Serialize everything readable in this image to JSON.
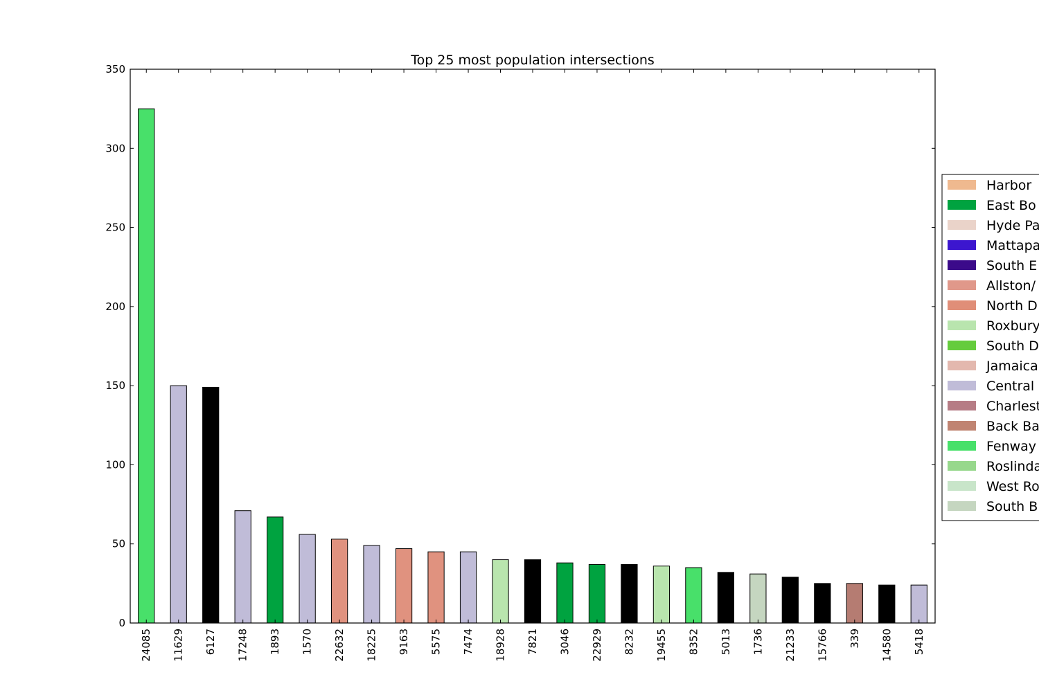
{
  "chart_data": {
    "type": "bar",
    "title": "Top 25 most population intersections",
    "xlabel": "",
    "ylabel": "",
    "ylim": [
      0,
      350
    ],
    "yticks": [
      0,
      50,
      100,
      150,
      200,
      250,
      300,
      350
    ],
    "grid": false,
    "legend_position": "right (clipped at edge)",
    "categories": [
      "24085",
      "11629",
      "6127",
      "17248",
      "1893",
      "1570",
      "22632",
      "18225",
      "9163",
      "5575",
      "7474",
      "18928",
      "7821",
      "3046",
      "22929",
      "8232",
      "19455",
      "8352",
      "5013",
      "1736",
      "21233",
      "15766",
      "339",
      "14580",
      "5418"
    ],
    "values": [
      325,
      150,
      149,
      71,
      67,
      56,
      53,
      49,
      47,
      45,
      45,
      40,
      40,
      38,
      37,
      37,
      36,
      35,
      32,
      31,
      29,
      25,
      25,
      24,
      24
    ],
    "bar_colors": [
      "#48e06a",
      "#c0bcd8",
      "#000000",
      "#c0bcd8",
      "#00a340",
      "#c0bcd8",
      "#e0927f",
      "#c0bcd8",
      "#e0927f",
      "#e0927f",
      "#c0bcd8",
      "#b9e5ae",
      "#000000",
      "#00a340",
      "#00a340",
      "#000000",
      "#b9e5ae",
      "#48e06a",
      "#000000",
      "#c5d6c0",
      "#000000",
      "#000000",
      "#b57c72",
      "#000000",
      "#c0bcd8"
    ],
    "legend": [
      {
        "label": "Harbor",
        "color": "#efb98f"
      },
      {
        "label": "East Bo",
        "color": "#00a340"
      },
      {
        "label": "Hyde Pa",
        "color": "#ead3c9"
      },
      {
        "label": "Mattapa",
        "color": "#3c16cf"
      },
      {
        "label": "South E",
        "color": "#3b0a8a"
      },
      {
        "label": "Allston/",
        "color": "#e0988a"
      },
      {
        "label": "North D",
        "color": "#e08e78"
      },
      {
        "label": "Roxbury",
        "color": "#b9e5ae"
      },
      {
        "label": "South D",
        "color": "#65cc3d"
      },
      {
        "label": "Jamaica",
        "color": "#e3b8ae"
      },
      {
        "label": "Central",
        "color": "#c0bcd8"
      },
      {
        "label": "Charlest",
        "color": "#b67c85"
      },
      {
        "label": "Back Ba",
        "color": "#c08472"
      },
      {
        "label": "Fenway",
        "color": "#48e06a"
      },
      {
        "label": "Roslinda",
        "color": "#97d88c"
      },
      {
        "label": "West Ro",
        "color": "#c8e5c9"
      },
      {
        "label": "South B",
        "color": "#c5d6c0"
      }
    ]
  }
}
